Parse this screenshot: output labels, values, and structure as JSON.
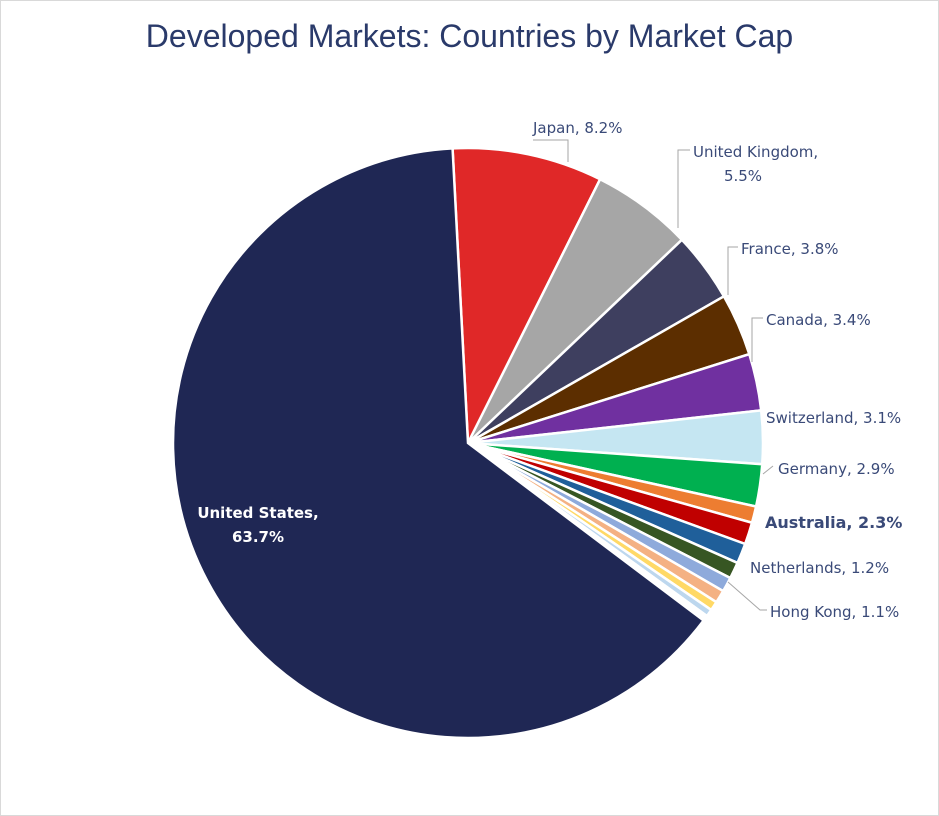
{
  "chart_data": {
    "type": "pie",
    "title": "Developed Markets: Countries by Market Cap",
    "unit": "%",
    "slices": [
      {
        "name": "Japan",
        "value": 8.2,
        "color": "#e02828",
        "label": "Japan, 8.2%"
      },
      {
        "name": "United Kingdom",
        "value": 5.5,
        "color": "#a6a6a6",
        "label": "United Kingdom,|5.5%"
      },
      {
        "name": "France",
        "value": 3.8,
        "color": "#3e3f5f",
        "label": "France, 3.8%"
      },
      {
        "name": "Canada",
        "value": 3.4,
        "color": "#5c2e00",
        "label": "Canada, 3.4%"
      },
      {
        "name": "Switzerland",
        "value": 3.1,
        "color": "#7030a0",
        "label": "Switzerland, 3.1%"
      },
      {
        "name": "Germany",
        "value": 2.9,
        "color": "#c5e6f2",
        "label": "Germany, 2.9%"
      },
      {
        "name": "Australia",
        "value": 2.3,
        "color": "#00b050",
        "label": "Australia, 2.3%",
        "bold": true
      },
      {
        "name": "",
        "value": 0.9,
        "color": "#ed7d31"
      },
      {
        "name": "Netherlands",
        "value": 1.2,
        "color": "#c00000",
        "label": "Netherlands, 1.2%"
      },
      {
        "name": "Hong Kong",
        "value": 1.1,
        "color": "#1f5f9a",
        "label": "Hong Kong, 1.1%"
      },
      {
        "name": "",
        "value": 0.9,
        "color": "#375623"
      },
      {
        "name": "",
        "value": 0.8,
        "color": "#8eaadb"
      },
      {
        "name": "",
        "value": 0.7,
        "color": "#f4b183"
      },
      {
        "name": "",
        "value": 0.5,
        "color": "#ffd966"
      },
      {
        "name": "",
        "value": 0.4,
        "color": "#bdd7ee"
      },
      {
        "name": "",
        "value": 0.3,
        "color": "#ffffff"
      },
      {
        "name": "United States",
        "value": 63.7,
        "color": "#1f2754",
        "label": "United States,|63.7%",
        "inside": true
      }
    ]
  }
}
